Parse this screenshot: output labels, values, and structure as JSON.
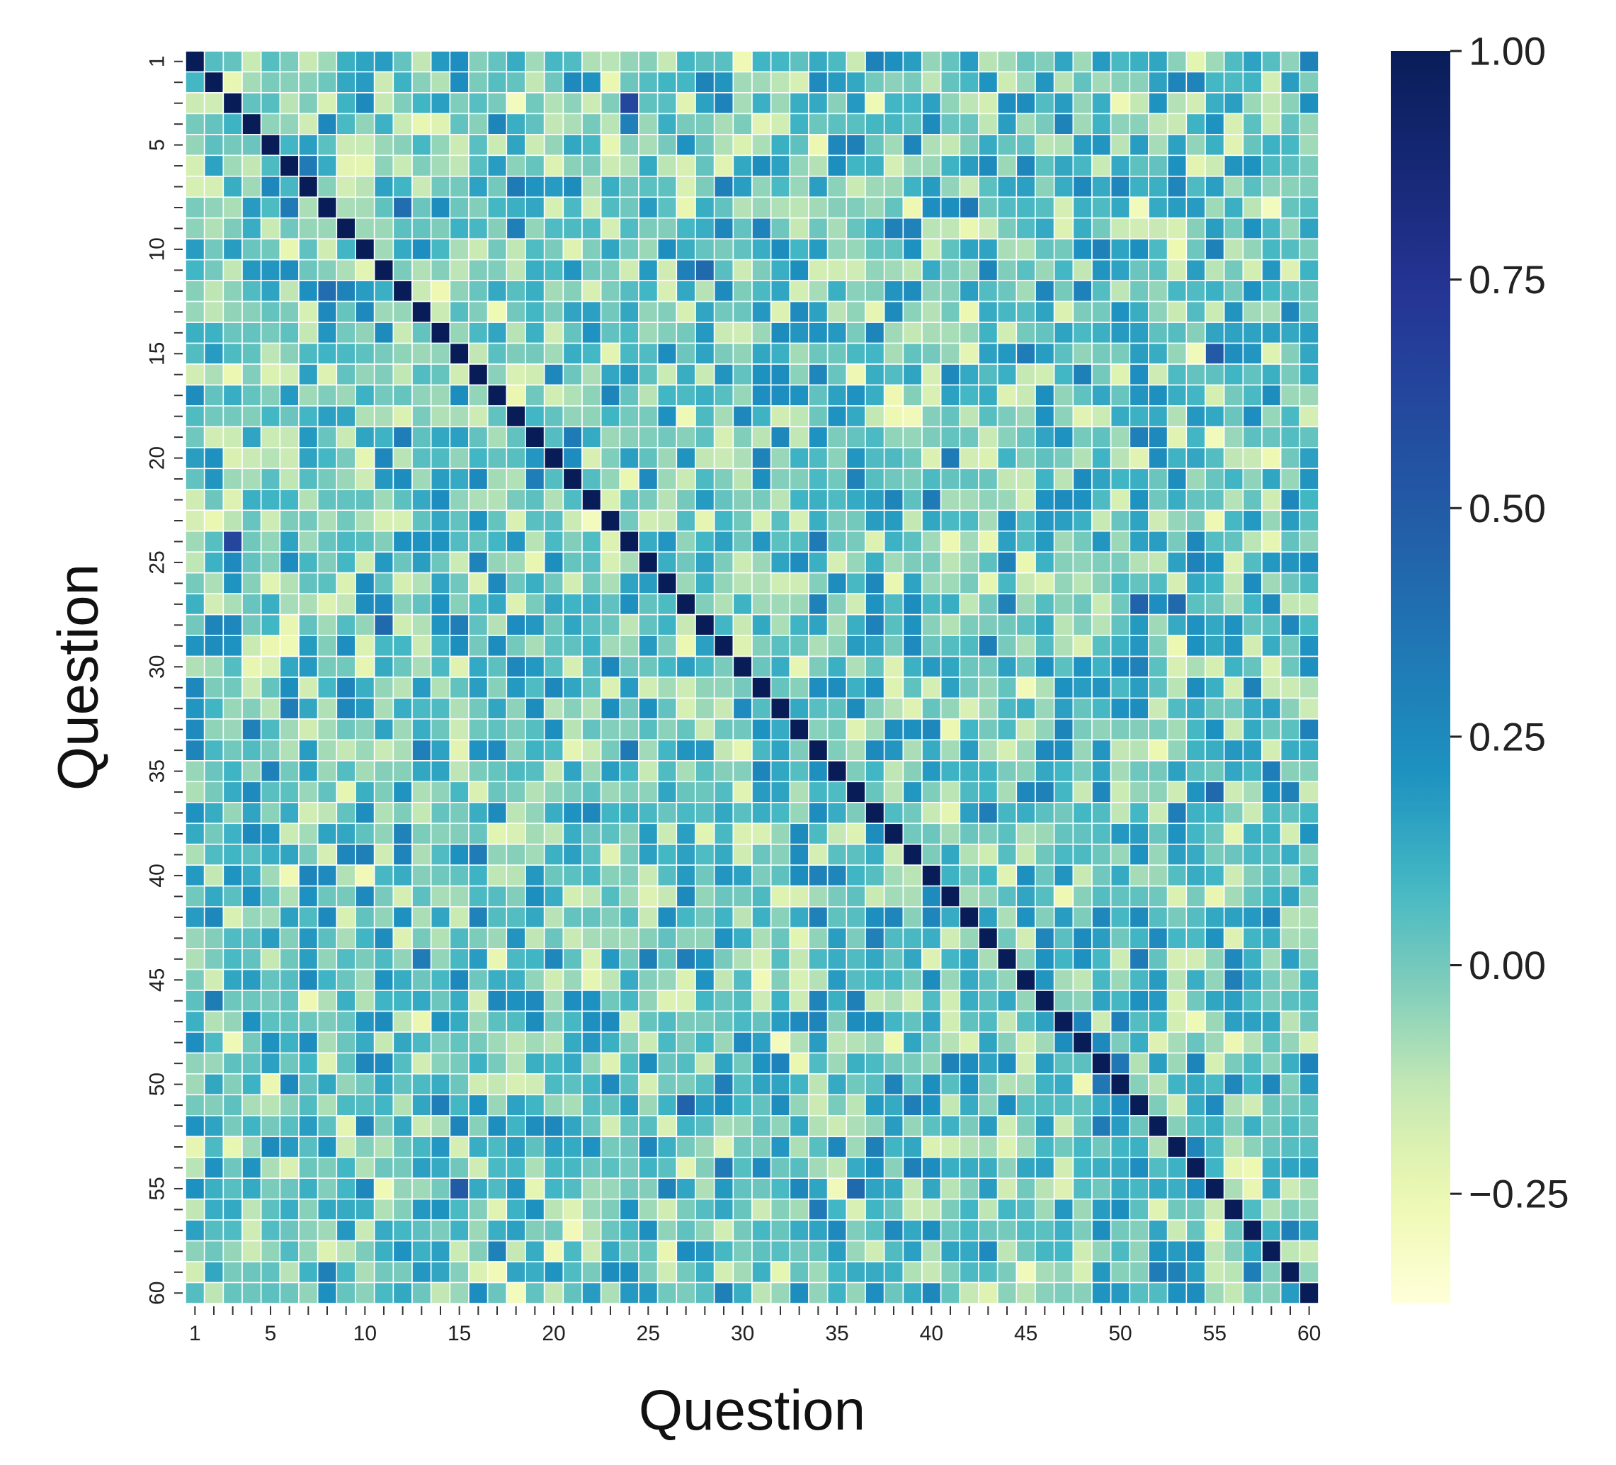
{
  "chart_data": {
    "type": "heatmap",
    "xlabel": "Question",
    "ylabel": "Question",
    "n": 60,
    "x_tick_labels": [
      "1",
      "5",
      "10",
      "15",
      "20",
      "25",
      "30",
      "35",
      "40",
      "45",
      "50",
      "55",
      "60"
    ],
    "y_tick_labels": [
      "1",
      "5",
      "10",
      "15",
      "20",
      "25",
      "30",
      "35",
      "40",
      "45",
      "50",
      "55",
      "60"
    ],
    "colorbar": {
      "min": -0.37,
      "max": 1.0,
      "ticks": [
        "1.00",
        "0.75",
        "0.50",
        "0.25",
        "0.00",
        "−0.25"
      ],
      "tick_values": [
        1.0,
        0.75,
        0.5,
        0.25,
        0.0,
        -0.25
      ],
      "colormap": "YlGnBu"
    },
    "diagonal_value": 1.0,
    "notable_cells": [
      {
        "row": 24,
        "col": 3,
        "value": 0.62
      },
      {
        "row": 3,
        "col": 24,
        "value": 0.62
      },
      {
        "row": 15,
        "col": 55,
        "value": 0.5
      },
      {
        "row": 55,
        "col": 15,
        "value": 0.5
      },
      {
        "row": 27,
        "col": 51,
        "value": 0.45
      },
      {
        "row": 27,
        "col": 53,
        "value": 0.42
      },
      {
        "row": 11,
        "col": 28,
        "value": 0.42
      },
      {
        "row": 28,
        "col": 11,
        "value": 0.42
      },
      {
        "row": 51,
        "col": 27,
        "value": 0.45
      },
      {
        "row": 55,
        "col": 36,
        "value": 0.42
      },
      {
        "row": 36,
        "col": 55,
        "value": 0.42
      },
      {
        "row": 49,
        "col": 50,
        "value": 0.35
      },
      {
        "row": 50,
        "col": 49,
        "value": 0.35
      },
      {
        "row": 12,
        "col": 8,
        "value": 0.4
      },
      {
        "row": 8,
        "col": 12,
        "value": 0.4
      }
    ],
    "typical_off_diagonal_range": [
      -0.3,
      0.35
    ]
  }
}
